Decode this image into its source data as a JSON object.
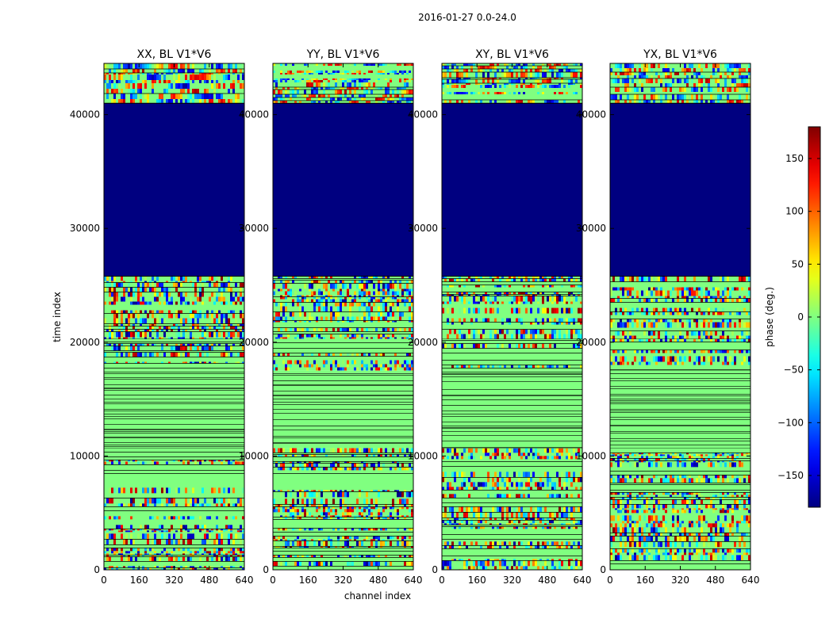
{
  "chart_data": {
    "type": "heatmap",
    "suptitle": "2016-01-27 0.0-24.0",
    "xlabel": "channel index",
    "ylabel": "time index",
    "xlim": [
      0,
      640
    ],
    "ylim": [
      0,
      44500
    ],
    "xticks": [
      "0",
      "160",
      "320",
      "480",
      "640"
    ],
    "yticks": [
      "0",
      "10000",
      "20000",
      "30000",
      "40000"
    ],
    "panels": [
      {
        "title": "XX, BL V1*V6"
      },
      {
        "title": "YY, BL V1*V6"
      },
      {
        "title": "XY, BL V1*V6"
      },
      {
        "title": "YX, BL V1*V6"
      }
    ],
    "colorbar": {
      "label": "phase (deg.)",
      "range": [
        -180,
        180
      ],
      "ticks": [
        "150",
        "100",
        "50",
        "0",
        "−50",
        "−100",
        "−150"
      ],
      "colormap": "jet"
    },
    "regions": [
      {
        "t0": 0,
        "t1": 10700,
        "fill": "noise",
        "density": 0.55
      },
      {
        "t0": 10700,
        "t1": 17500,
        "fill": "zero",
        "density": 0.0
      },
      {
        "t0": 17500,
        "t1": 20300,
        "fill": "noise",
        "density": 0.35
      },
      {
        "t0": 20300,
        "t1": 25800,
        "fill": "noise",
        "density": 0.8
      },
      {
        "t0": 25800,
        "t1": 41000,
        "fill": "flagged",
        "density": 0.0
      },
      {
        "t0": 41000,
        "t1": 44500,
        "fill": "fringe",
        "density": 0.9
      }
    ]
  }
}
